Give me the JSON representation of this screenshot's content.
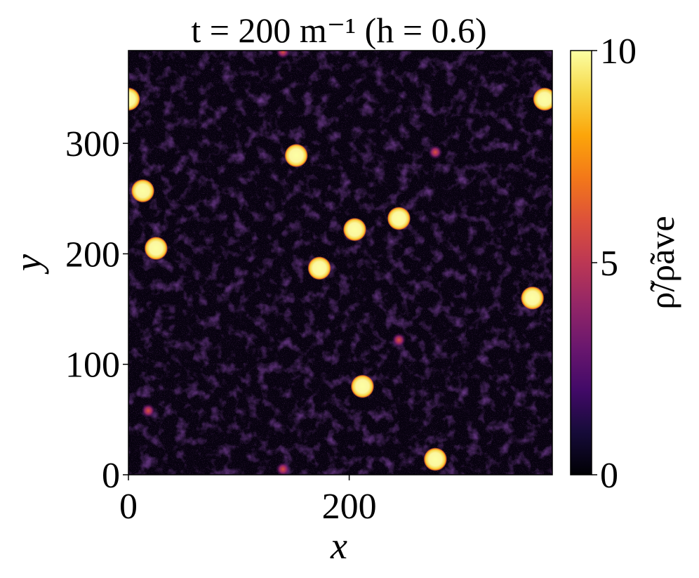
{
  "chart_data": {
    "type": "heatmap",
    "title": "t = 200 m⁻¹ (h = 0.6)",
    "xlabel": "x",
    "ylabel": "y",
    "xlim": [
      0,
      384
    ],
    "ylim": [
      0,
      384
    ],
    "xticks": [
      0,
      200
    ],
    "yticks": [
      0,
      100,
      200,
      300
    ],
    "colorbar": {
      "label": "ρ̃/ρ̃ave",
      "range": [
        0,
        10
      ],
      "ticks": [
        0,
        5,
        10
      ],
      "colormap": "inferno"
    },
    "bright_clumps": [
      {
        "x": 0,
        "y": 340
      },
      {
        "x": 377,
        "y": 340
      },
      {
        "x": 152,
        "y": 289
      },
      {
        "x": 13,
        "y": 257
      },
      {
        "x": 245,
        "y": 232
      },
      {
        "x": 205,
        "y": 222
      },
      {
        "x": 25,
        "y": 205
      },
      {
        "x": 173,
        "y": 187
      },
      {
        "x": 366,
        "y": 160
      },
      {
        "x": 212,
        "y": 80
      },
      {
        "x": 278,
        "y": 14
      }
    ],
    "faint_clumps": [
      {
        "x": 278,
        "y": 292
      },
      {
        "x": 245,
        "y": 122
      },
      {
        "x": 140,
        "y": 383
      },
      {
        "x": 140,
        "y": 5
      },
      {
        "x": 18,
        "y": 58
      }
    ]
  }
}
